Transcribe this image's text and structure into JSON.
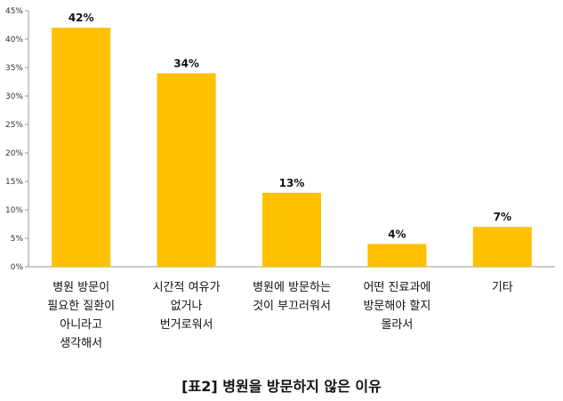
{
  "chart_data": {
    "type": "bar",
    "title": "[표2] 병원을 방문하지 않은 이유",
    "categories": [
      "병원 방문이\n필요한 질환이\n아니라고\n생각해서",
      "시간적 여유가\n없거나\n번거로워서",
      "병원에 방문하는\n것이 부끄러워서",
      "어떤 진료과에\n방문해야 할지\n몰라서",
      "기타"
    ],
    "values": [
      42,
      34,
      13,
      4,
      7
    ],
    "value_labels": [
      "42%",
      "34%",
      "13%",
      "4%",
      "7%"
    ],
    "ylim": [
      0,
      45
    ],
    "yticks": [
      0,
      5,
      10,
      15,
      20,
      25,
      30,
      35,
      40,
      45
    ],
    "ytick_labels": [
      "0%",
      "5%",
      "10%",
      "15%",
      "20%",
      "25%",
      "30%",
      "35%",
      "40%",
      "45%"
    ],
    "xlabel": "",
    "ylabel": "",
    "grid": false,
    "bar_color": "#FFC000"
  }
}
